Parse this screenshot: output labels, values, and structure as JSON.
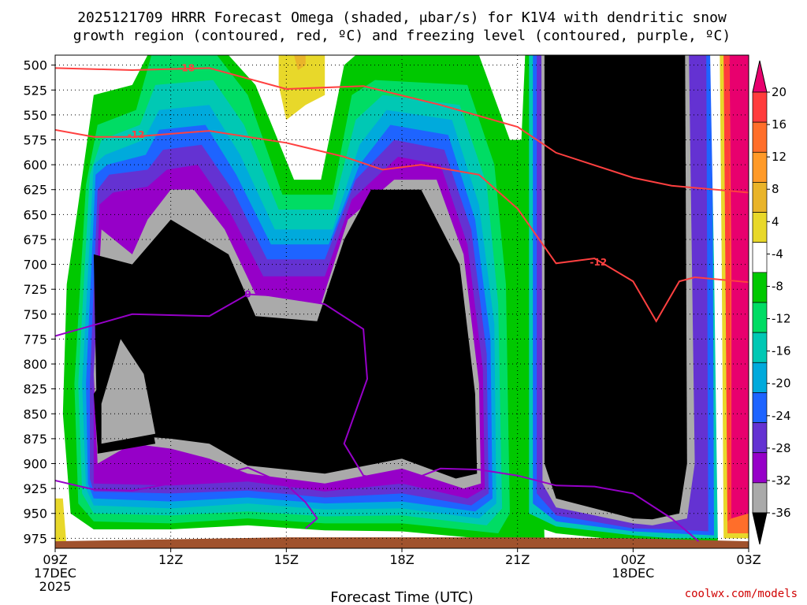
{
  "title_line1": "2025121709 HRRR Forecast Omega (shaded, μbar/s) for K1V4 with dendritic snow",
  "title_line2": "growth region (contoured, red, ºC) and freezing level (contoured, purple, ºC)",
  "credit": "coolwx.com/models",
  "chart_data": {
    "type": "heatmap",
    "xlabel": "Forecast Time (UTC)",
    "ylabel": "",
    "y_ticks": [
      500,
      525,
      550,
      575,
      600,
      625,
      650,
      675,
      700,
      725,
      750,
      775,
      800,
      825,
      850,
      875,
      900,
      925,
      950,
      975
    ],
    "ylim": [
      490,
      985
    ],
    "x_ticks": [
      {
        "hour": 0,
        "lines": [
          "09Z",
          "17DEC",
          "2025"
        ]
      },
      {
        "hour": 3,
        "lines": [
          "12Z"
        ]
      },
      {
        "hour": 6,
        "lines": [
          "15Z"
        ]
      },
      {
        "hour": 9,
        "lines": [
          "18Z"
        ]
      },
      {
        "hour": 12,
        "lines": [
          "21Z"
        ]
      },
      {
        "hour": 15,
        "lines": [
          "00Z",
          "18DEC"
        ]
      },
      {
        "hour": 18,
        "lines": [
          "03Z"
        ]
      }
    ],
    "xlim": [
      0,
      18
    ],
    "colorbar": {
      "ticks": [
        20,
        16,
        12,
        8,
        4,
        -4,
        -8,
        -12,
        -16,
        -20,
        -24,
        -28,
        -32,
        -36
      ],
      "colors": [
        "#e8006e",
        "#ff3c3c",
        "#ff6e2a",
        "#ff9a28",
        "#e9b42a",
        "#e8d82a",
        "#ffffff",
        "#00c800",
        "#00dc64",
        "#00c8b4",
        "#00aadc",
        "#1e64ff",
        "#6432d2",
        "#9600c8",
        "#aaaaaa",
        "#000000"
      ]
    },
    "grid": true,
    "series": [
      {
        "name": "Omega",
        "kind": "filled-contour"
      },
      {
        "name": "-18",
        "kind": "contour",
        "color": "#ff4040",
        "points": [
          [
            0,
            503
          ],
          [
            2,
            505
          ],
          [
            4,
            503
          ],
          [
            6,
            524
          ],
          [
            8,
            521
          ],
          [
            10,
            540
          ],
          [
            12,
            562
          ],
          [
            13,
            588
          ],
          [
            15,
            613
          ],
          [
            16,
            621
          ],
          [
            18,
            628
          ]
        ]
      },
      {
        "name": "-12",
        "kind": "contour",
        "color": "#ff4040",
        "points": [
          [
            0,
            565
          ],
          [
            1,
            572
          ],
          [
            2,
            572
          ],
          [
            4,
            566
          ],
          [
            6,
            578
          ],
          [
            7.5,
            592
          ],
          [
            8.5,
            605
          ],
          [
            9.5,
            600
          ],
          [
            11,
            610
          ],
          [
            12,
            644
          ],
          [
            13,
            699
          ],
          [
            14,
            694
          ],
          [
            15,
            717
          ],
          [
            15.6,
            757
          ],
          [
            16.2,
            717
          ],
          [
            16.6,
            713
          ],
          [
            18,
            718
          ]
        ]
      },
      {
        "name": "0",
        "kind": "contour",
        "color": "#9600c8",
        "points": [
          [
            0,
            772
          ],
          [
            2,
            750
          ],
          [
            4,
            752
          ],
          [
            5,
            730
          ],
          [
            6,
            732
          ],
          [
            7,
            740
          ],
          [
            8,
            765
          ],
          [
            8.1,
            815
          ],
          [
            7.5,
            880
          ],
          [
            8,
            912
          ],
          [
            9,
            920
          ],
          [
            10,
            905
          ],
          [
            11,
            906
          ],
          [
            12,
            912
          ],
          [
            13,
            922
          ],
          [
            14,
            923
          ],
          [
            15,
            930
          ],
          [
            16,
            955
          ],
          [
            16.7,
            978
          ]
        ]
      },
      {
        "name": "0",
        "kind": "contour",
        "color": "#9600c8",
        "points": [
          [
            0,
            917
          ],
          [
            1,
            926
          ],
          [
            2,
            927
          ],
          [
            3,
            920
          ],
          [
            4,
            914
          ],
          [
            5,
            904
          ],
          [
            6,
            921
          ],
          [
            6.5,
            939
          ],
          [
            6.8,
            955
          ],
          [
            6.5,
            965
          ]
        ]
      }
    ],
    "contour_labels": [
      {
        "text": "-18",
        "color": "#ff4040"
      },
      {
        "text": "-12",
        "color": "#ff4040"
      },
      {
        "text": "-12",
        "color": "#ff4040"
      },
      {
        "text": "0",
        "color": "#9600c8"
      }
    ]
  }
}
